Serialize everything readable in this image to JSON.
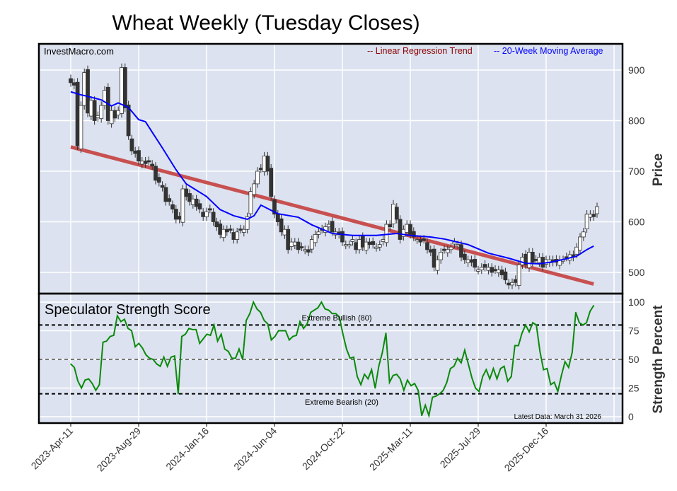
{
  "chart_data": [
    {
      "type": "candlestick",
      "title": "Wheat Weekly (Tuesday Closes)",
      "watermark": "InvestMacro.com",
      "ylabel": "Price",
      "ylim": [
        450,
        960
      ],
      "yticks": [
        500,
        600,
        700,
        800,
        900
      ],
      "x_unit": "weeks since 2023-Apr-11",
      "xticks": [
        "2023-Apr-11",
        "2023-Aug-29",
        "2024-Jan-16",
        "2024-Jun-04",
        "2024-Oct-22",
        "2025-Mar-11",
        "2025-Jul-29",
        "2025-Dec-16"
      ],
      "xtick_step_weeks": 20,
      "legend": [
        {
          "label": "-- Linear Regression Trend",
          "color": "#8b0000"
        },
        {
          "label": "-- 20-Week Moving Average",
          "color": "#0000ff"
        }
      ],
      "legend_placement": "top-right",
      "close": [
        875,
        870,
        750,
        830,
        895,
        815,
        840,
        800,
        810,
        830,
        860,
        800,
        820,
        805,
        820,
        905,
        825,
        770,
        740,
        735,
        720,
        720,
        715,
        720,
        710,
        682,
        678,
        668,
        640,
        640,
        625,
        605,
        605,
        665,
        650,
        640,
        645,
        630,
        625,
        610,
        620,
        625,
        600,
        590,
        575,
        585,
        580,
        585,
        565,
        580,
        585,
        585,
        610,
        660,
        675,
        700,
        705,
        730,
        700,
        650,
        615,
        600,
        580,
        585,
        545,
        560,
        560,
        545,
        550,
        545,
        540,
        565,
        575,
        580,
        585,
        590,
        595,
        580,
        580,
        575,
        560,
        555,
        555,
        565,
        545,
        565,
        550,
        560,
        555,
        555,
        550,
        555,
        565,
        595,
        590,
        635,
        605,
        565,
        585,
        595,
        575,
        570,
        565,
        560,
        565,
        545,
        540,
        510,
        525,
        540,
        545,
        545,
        550,
        560,
        555,
        530,
        525,
        525,
        520,
        510,
        505,
        510,
        510,
        510,
        500,
        505,
        505,
        495,
        485,
        475,
        480,
        480,
        515,
        530,
        515,
        540,
        520,
        525,
        530,
        510,
        525,
        525,
        520,
        520,
        525,
        525,
        530,
        535,
        530,
        550,
        570,
        580,
        615,
        615,
        610,
        630
      ],
      "moving_average_20wk": [
        [
          0,
          857
        ],
        [
          3,
          851
        ],
        [
          5,
          848
        ],
        [
          9,
          841
        ],
        [
          12,
          829
        ],
        [
          14,
          835
        ],
        [
          17,
          826
        ],
        [
          20,
          802
        ],
        [
          22,
          798
        ],
        [
          24,
          777
        ],
        [
          27,
          746
        ],
        [
          31,
          703
        ],
        [
          34,
          675
        ],
        [
          40,
          650
        ],
        [
          44,
          624
        ],
        [
          48,
          612
        ],
        [
          52,
          605
        ],
        [
          54,
          612
        ],
        [
          56,
          633
        ],
        [
          61,
          616
        ],
        [
          67,
          609
        ],
        [
          71,
          594
        ],
        [
          77,
          577
        ],
        [
          83,
          573
        ],
        [
          90,
          573
        ],
        [
          96,
          577
        ],
        [
          100,
          573
        ],
        [
          106,
          570
        ],
        [
          110,
          566
        ],
        [
          117,
          555
        ],
        [
          123,
          538
        ],
        [
          129,
          528
        ],
        [
          134,
          518
        ],
        [
          138,
          517
        ],
        [
          142,
          521
        ],
        [
          146,
          527
        ],
        [
          149,
          532
        ],
        [
          152,
          545
        ],
        [
          154,
          552
        ]
      ],
      "regression_trend": {
        "start": [
          0,
          748
        ],
        "end": [
          154,
          477
        ],
        "color": "#c85050"
      }
    },
    {
      "type": "line",
      "title": "Speculator Strength Score",
      "ylabel": "Strength Percent",
      "ylim": [
        0,
        100
      ],
      "yticks": [
        0,
        25,
        50,
        75,
        100
      ],
      "reference_lines": [
        {
          "value": 80,
          "label": "Extreme Bullish (80)"
        },
        {
          "value": 50,
          "label": ""
        },
        {
          "value": 20,
          "label": "Extreme Bearish (20)"
        }
      ],
      "annotation": "Latest Data: March 31 2026",
      "color": "#0a8a0a",
      "values": [
        46,
        43,
        31,
        25,
        32,
        33,
        29,
        23,
        28,
        65,
        66,
        70,
        71,
        88,
        83,
        85,
        77,
        75,
        61,
        64,
        60,
        54,
        51,
        50,
        46,
        44,
        52,
        44,
        52,
        53,
        20,
        70,
        72,
        77,
        76,
        76,
        64,
        68,
        72,
        71,
        80,
        66,
        72,
        59,
        57,
        51,
        51,
        59,
        50,
        84,
        90,
        100,
        94,
        91,
        84,
        81,
        67,
        70,
        75,
        75,
        75,
        67,
        70,
        71,
        83,
        77,
        81,
        91,
        93,
        95,
        100,
        94,
        93,
        90,
        90,
        87,
        72,
        59,
        51,
        52,
        35,
        28,
        37,
        33,
        41,
        25,
        44,
        56,
        73,
        30,
        36,
        37,
        33,
        23,
        32,
        27,
        29,
        23,
        1,
        10,
        1,
        17,
        18,
        20,
        23,
        30,
        42,
        44,
        51,
        47,
        58,
        46,
        34,
        25,
        22,
        35,
        41,
        33,
        42,
        33,
        42,
        44,
        31,
        35,
        62,
        62,
        73,
        80,
        74,
        82,
        80,
        57,
        41,
        42,
        28,
        30,
        22,
        36,
        48,
        43,
        56,
        91,
        82,
        80,
        82,
        92,
        97
      ]
    }
  ]
}
